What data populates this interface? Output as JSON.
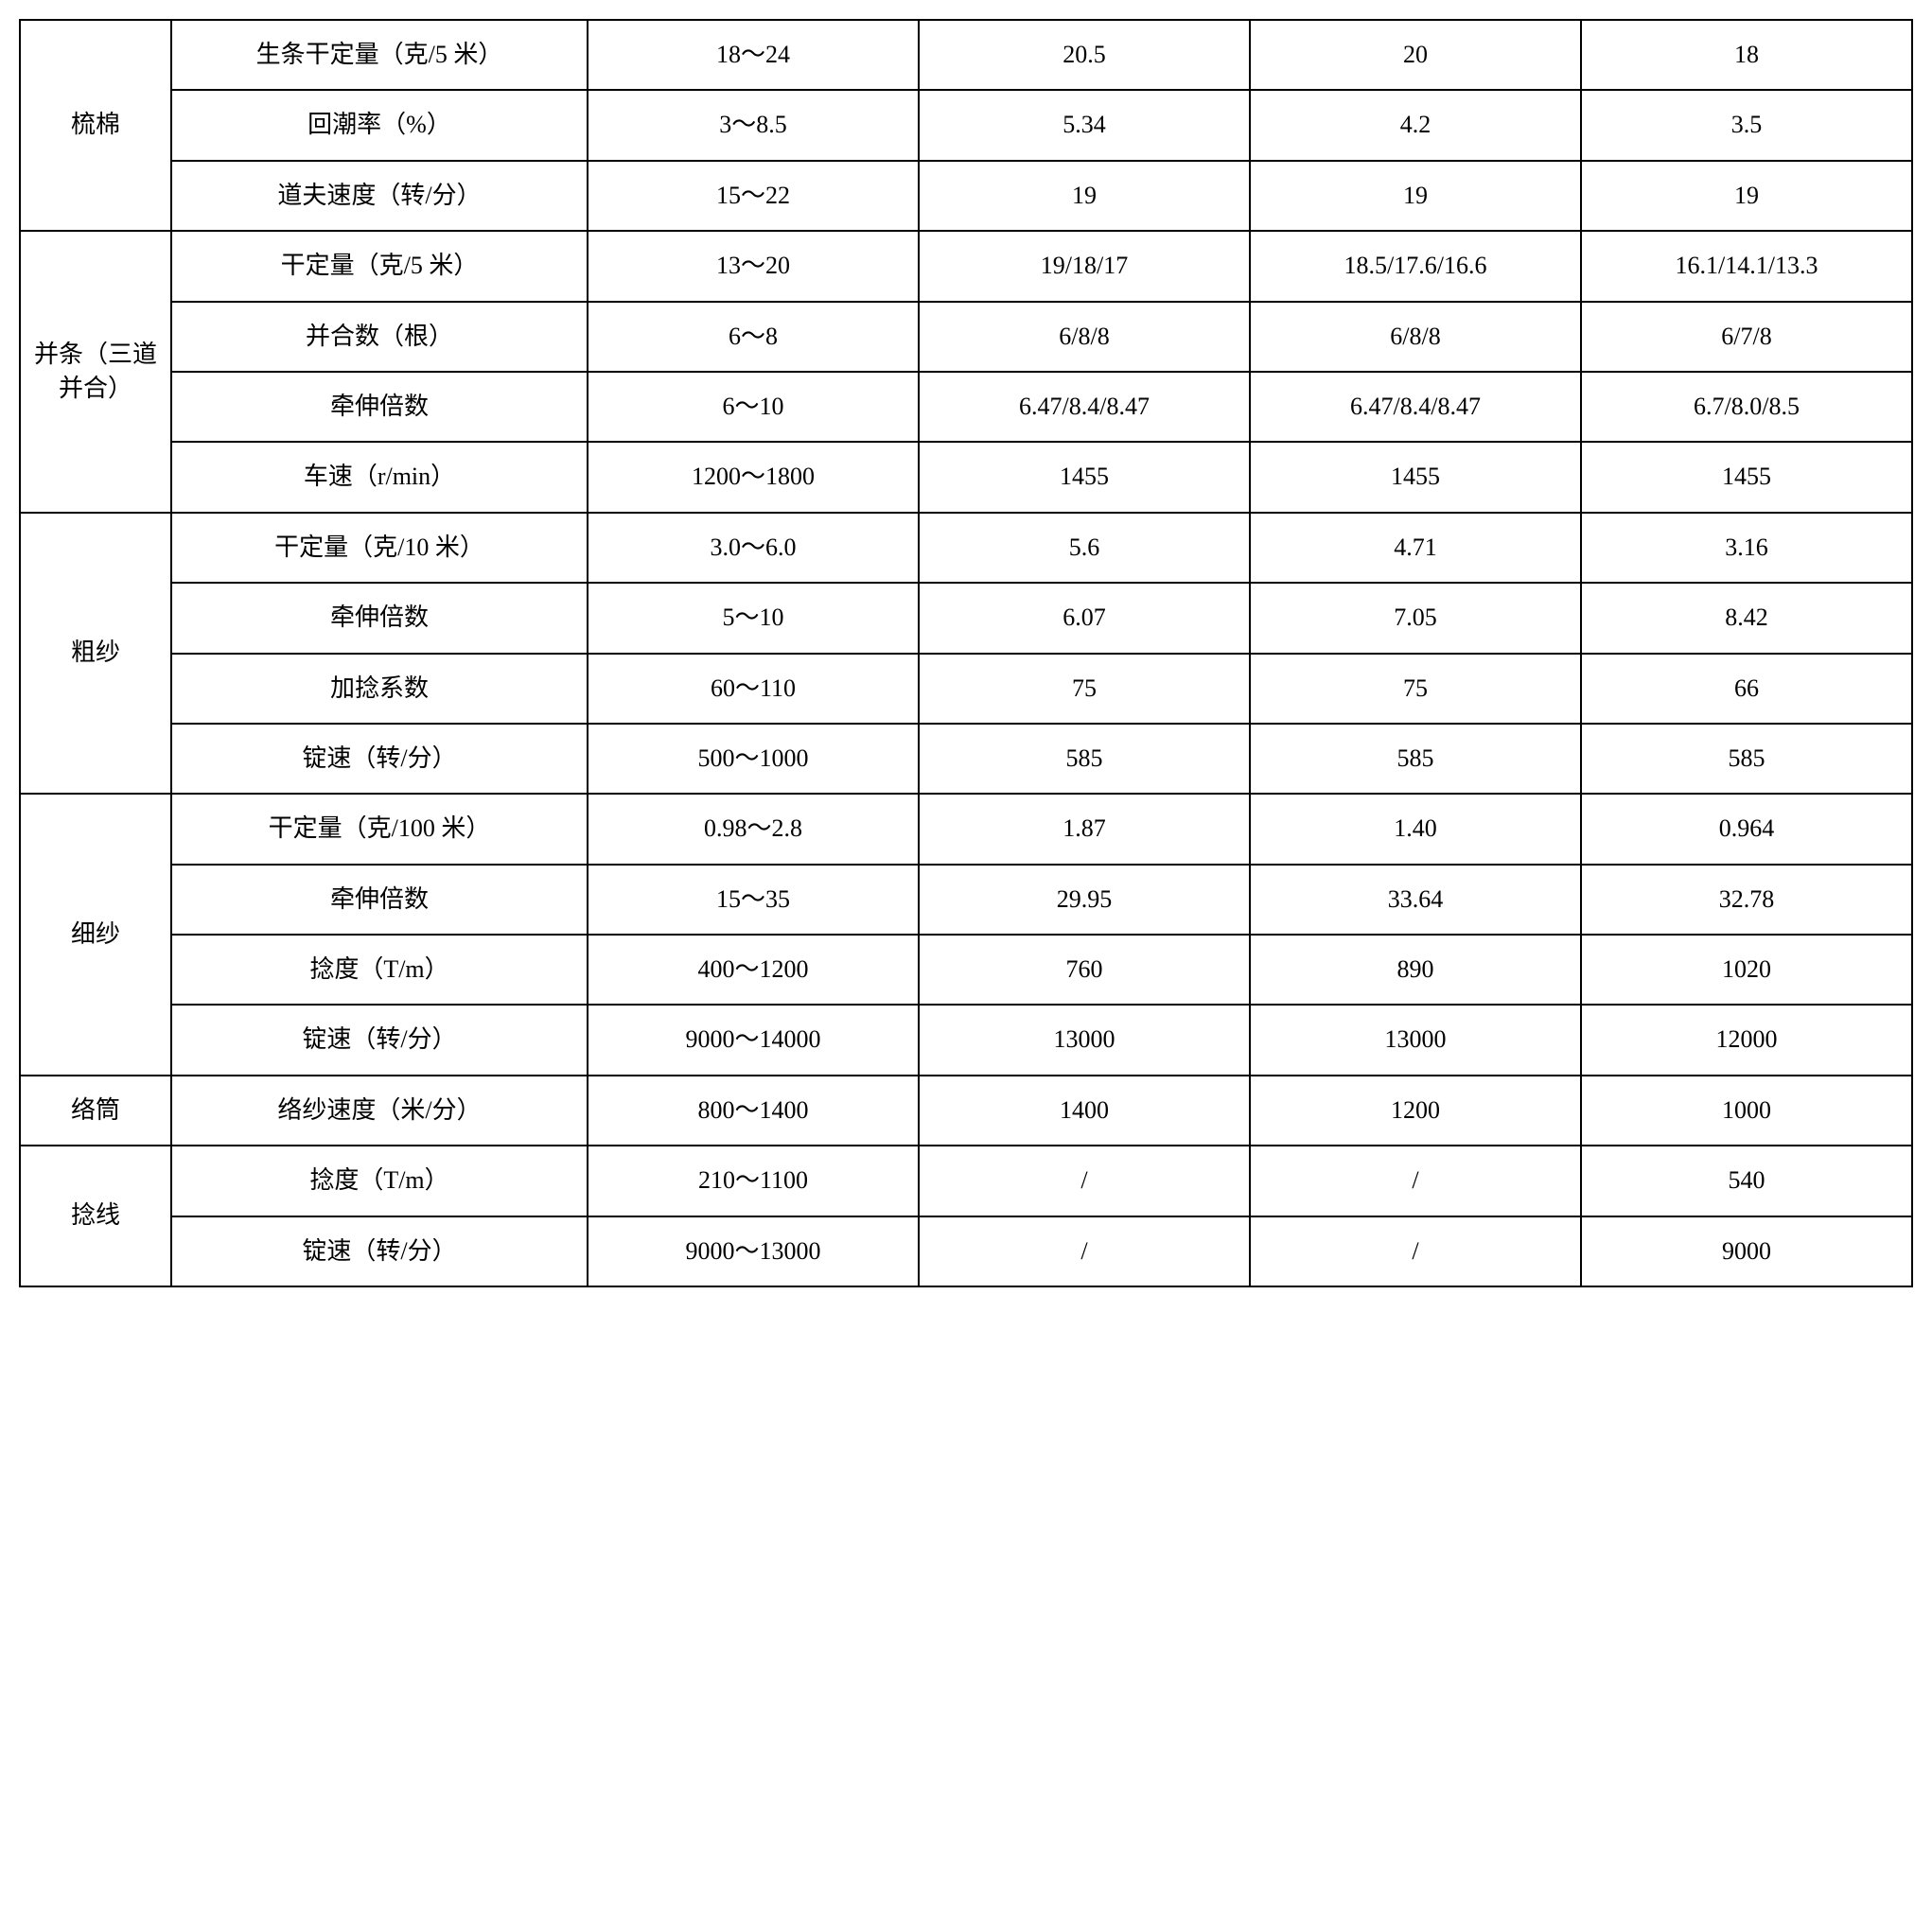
{
  "table": {
    "border_color": "#000000",
    "background_color": "#ffffff",
    "font_family": "SimSun",
    "cell_fontsize": 26,
    "column_widths_pct": [
      8,
      22,
      17.5,
      17.5,
      17.5,
      17.5
    ],
    "groups": [
      {
        "label": "梳棉",
        "rows": [
          {
            "param": "生条干定量（克/5 米）",
            "range": "18～24",
            "v1": "20.5",
            "v2": "20",
            "v3": "18"
          },
          {
            "param": "回潮率（%）",
            "range": "3～8.5",
            "v1": "5.34",
            "v2": "4.2",
            "v3": "3.5"
          },
          {
            "param": "道夫速度（转/分）",
            "range": "15～22",
            "v1": "19",
            "v2": "19",
            "v3": "19"
          }
        ]
      },
      {
        "label": "并条（三道并合）",
        "rows": [
          {
            "param": "干定量（克/5 米）",
            "range": "13～20",
            "v1": "19/18/17",
            "v2": "18.5/17.6/16.6",
            "v3": "16.1/14.1/13.3"
          },
          {
            "param": "并合数（根）",
            "range": "6～8",
            "v1": "6/8/8",
            "v2": "6/8/8",
            "v3": "6/7/8"
          },
          {
            "param": "牵伸倍数",
            "range": "6～10",
            "v1": "6.47/8.4/8.47",
            "v2": "6.47/8.4/8.47",
            "v3": "6.7/8.0/8.5"
          },
          {
            "param": "车速（r/min）",
            "range": "1200～1800",
            "v1": "1455",
            "v2": "1455",
            "v3": "1455"
          }
        ]
      },
      {
        "label": "粗纱",
        "rows": [
          {
            "param": "干定量（克/10 米）",
            "range": "3.0～6.0",
            "v1": "5.6",
            "v2": "4.71",
            "v3": "3.16"
          },
          {
            "param": "牵伸倍数",
            "range": "5～10",
            "v1": "6.07",
            "v2": "7.05",
            "v3": "8.42"
          },
          {
            "param": "加捻系数",
            "range": "60～110",
            "v1": "75",
            "v2": "75",
            "v3": "66"
          },
          {
            "param": "锭速（转/分）",
            "range": "500～1000",
            "v1": "585",
            "v2": "585",
            "v3": "585"
          }
        ]
      },
      {
        "label": "细纱",
        "rows": [
          {
            "param": "干定量（克/100 米）",
            "range": "0.98～2.8",
            "v1": "1.87",
            "v2": "1.40",
            "v3": "0.964"
          },
          {
            "param": "牵伸倍数",
            "range": "15～35",
            "v1": "29.95",
            "v2": "33.64",
            "v3": "32.78"
          },
          {
            "param": "捻度（T/m）",
            "range": "400～1200",
            "v1": "760",
            "v2": "890",
            "v3": "1020"
          },
          {
            "param": "锭速（转/分）",
            "range": "9000～14000",
            "v1": "13000",
            "v2": "13000",
            "v3": "12000"
          }
        ]
      },
      {
        "label": "络筒",
        "rows": [
          {
            "param": "络纱速度（米/分）",
            "range": "800～1400",
            "v1": "1400",
            "v2": "1200",
            "v3": "1000"
          }
        ]
      },
      {
        "label": "捻线",
        "rows": [
          {
            "param": "捻度（T/m）",
            "range": "210～1100",
            "v1": "/",
            "v2": "/",
            "v3": "540"
          },
          {
            "param": "锭速（转/分）",
            "range": "9000～13000",
            "v1": "/",
            "v2": "/",
            "v3": "9000"
          }
        ]
      }
    ]
  }
}
